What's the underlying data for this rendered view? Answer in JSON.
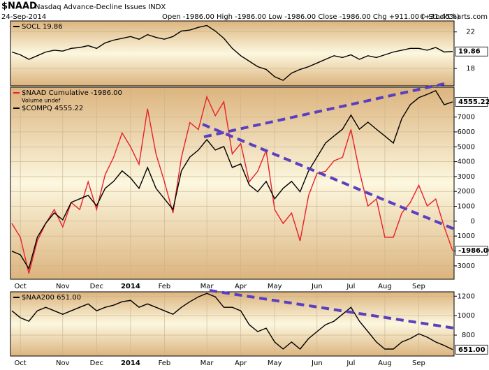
{
  "header": {
    "symbol": "$NAAD",
    "name": "Nasdaq Advance-Decline Issues INDX",
    "date": "24-Sep-2014",
    "quote": "Open -1986.00  High -1986.00  Low -1986.00  Close -1986.00  Chg +911.00 (+31.45%)",
    "credit": "© StockCharts.com"
  },
  "chart_data": [
    {
      "type": "line",
      "ylim": [
        16.1,
        23.2
      ],
      "yticks": [
        18,
        22
      ],
      "grid": true,
      "series": [
        {
          "name": "SOCL 19.86",
          "color": "#000000",
          "last_label": "19.86",
          "values": [
            19.8,
            19.5,
            19.0,
            19.4,
            19.8,
            20.0,
            19.9,
            20.2,
            20.3,
            20.5,
            20.2,
            20.8,
            21.1,
            21.3,
            21.5,
            21.2,
            21.7,
            21.4,
            21.2,
            21.5,
            22.1,
            22.2,
            22.5,
            22.7,
            22.1,
            21.3,
            20.2,
            19.4,
            18.8,
            18.2,
            17.9,
            17.1,
            16.7,
            17.5,
            17.9,
            18.2,
            18.6,
            19.0,
            19.4,
            19.2,
            19.5,
            19.0,
            19.4,
            19.2,
            19.5,
            19.8,
            20.0,
            20.2,
            20.2,
            20.0,
            20.3,
            19.8,
            19.86
          ]
        }
      ]
    },
    {
      "type": "line",
      "ylim": [
        -3900,
        9000
      ],
      "yticks": [
        7000,
        6000,
        5000,
        4000,
        3000,
        2000,
        1000,
        0,
        -1000,
        -2000,
        -3000
      ],
      "y2lim": [
        3620,
        4632
      ],
      "grid": true,
      "note": "Volume undef",
      "categories": [
        null,
        "Oct",
        null,
        null,
        null,
        null,
        "Nov",
        null,
        null,
        null,
        "Dec",
        null,
        null,
        null,
        "2014",
        null,
        null,
        null,
        "Feb",
        null,
        null,
        null,
        null,
        "Mar",
        null,
        null,
        null,
        "Apr",
        null,
        null,
        null,
        "May",
        null,
        null,
        null,
        null,
        "Jun",
        null,
        null,
        null,
        "Jul",
        null,
        null,
        null,
        "Aug",
        null,
        null,
        null,
        "Sep",
        null,
        null,
        null,
        null
      ],
      "series": [
        {
          "name": "$NAAD Cumulative -1986.00",
          "color": "#e8202a",
          "last_label": "-1986.00",
          "values": [
            -150,
            -1080,
            -3510,
            -1320,
            -150,
            780,
            -380,
            1250,
            780,
            2650,
            780,
            3120,
            4290,
            5930,
            5000,
            3820,
            7560,
            4520,
            2650,
            550,
            4290,
            6630,
            6160,
            8360,
            7090,
            8030,
            4520,
            5220,
            2650,
            3350,
            4760,
            780,
            -150,
            550,
            -1320,
            1720,
            3220,
            3350,
            4060,
            4290,
            6160,
            3350,
            1020,
            1490,
            -1080,
            -1080,
            550,
            1250,
            2420,
            1020,
            1490,
            -380,
            -1986
          ]
        },
        {
          "name": "$COMPQ 4555.22",
          "color": "#000000",
          "axis": "y2",
          "last_label": "4555.22",
          "values": [
            3768,
            3749,
            3676,
            3841,
            3915,
            3970,
            3933,
            4025,
            4044,
            4062,
            4007,
            4099,
            4136,
            4191,
            4154,
            4099,
            4209,
            4099,
            4044,
            3988,
            4191,
            4264,
            4301,
            4356,
            4301,
            4320,
            4209,
            4228,
            4117,
            4081,
            4136,
            4044,
            4099,
            4136,
            4081,
            4191,
            4264,
            4338,
            4375,
            4411,
            4485,
            4411,
            4448,
            4411,
            4375,
            4338,
            4467,
            4540,
            4577,
            4595,
            4614,
            4540,
            4555.22
          ]
        }
      ]
    },
    {
      "type": "line",
      "ylim": [
        585,
        1245
      ],
      "yticks": [
        800,
        1000,
        1200
      ],
      "grid": true,
      "categories": [
        null,
        "Oct",
        null,
        null,
        null,
        null,
        "Nov",
        null,
        null,
        null,
        "Dec",
        null,
        null,
        null,
        "2014",
        null,
        null,
        null,
        "Feb",
        null,
        null,
        null,
        null,
        "Mar",
        null,
        null,
        null,
        "Apr",
        null,
        null,
        null,
        "May",
        null,
        null,
        null,
        null,
        "Jun",
        null,
        null,
        null,
        "Jul",
        null,
        null,
        null,
        "Aug",
        null,
        null,
        null,
        "Sep",
        null,
        null,
        null,
        null
      ],
      "series": [
        {
          "name": "$NAA200 651.00",
          "color": "#000000",
          "last_label": "651.00",
          "values": [
            1050,
            979,
            943,
            1050,
            1086,
            1050,
            1014,
            1050,
            1086,
            1121,
            1050,
            1086,
            1107,
            1143,
            1157,
            1086,
            1121,
            1086,
            1050,
            1014,
            1086,
            1143,
            1193,
            1229,
            1193,
            1086,
            1086,
            1050,
            907,
            836,
            871,
            729,
            657,
            729,
            657,
            764,
            836,
            907,
            943,
            1014,
            1086,
            943,
            836,
            729,
            657,
            657,
            729,
            764,
            814,
            779,
            729,
            693,
            651
          ]
        }
      ]
    }
  ]
}
